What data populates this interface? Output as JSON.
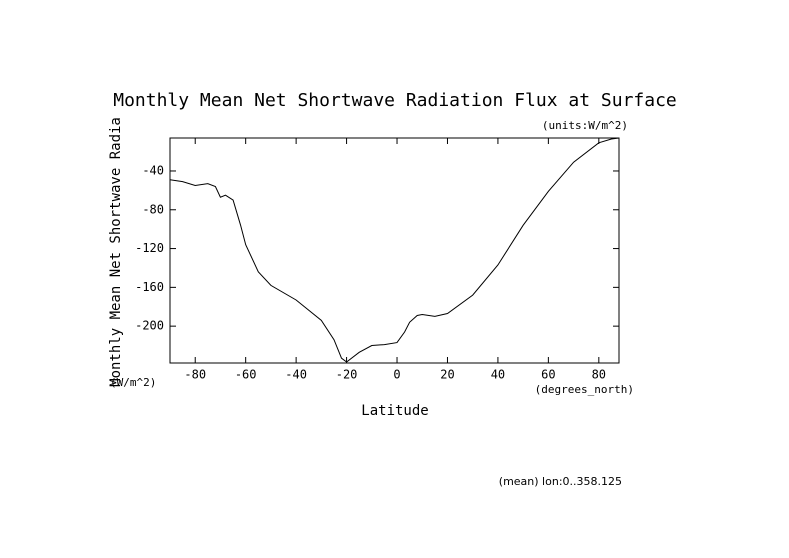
{
  "chart_data": {
    "type": "line",
    "title": "Monthly Mean Net Shortwave Radiation Flux at Surface",
    "units_note": "(units:W/m^2)",
    "y_label": "Monthly Mean Net Shortwave Radia",
    "y_unit": "(W/m^2)",
    "x_unit": "(degrees_north)",
    "x_label": "Latitude",
    "footnote": "(mean) lon:0..358.125",
    "color": "#000000",
    "x": [
      -90,
      -85,
      -80,
      -75,
      -72,
      -70,
      -68,
      -65,
      -62,
      -60,
      -55,
      -50,
      -40,
      -30,
      -25,
      -22,
      -20,
      -15,
      -10,
      -5,
      0,
      3,
      5,
      8,
      10,
      15,
      20,
      30,
      40,
      50,
      60,
      70,
      80,
      85,
      88
    ],
    "values": [
      -49,
      -51,
      -55,
      -53,
      -56,
      -67,
      -65,
      -70,
      -96,
      -116,
      -144,
      -158,
      -173,
      -194,
      -214,
      -233,
      -237,
      -227,
      -220,
      -219,
      -217,
      -206,
      -196,
      -189,
      -188,
      -190,
      -187,
      -168,
      -137,
      -96,
      -61,
      -31,
      -11,
      -7,
      -6
    ],
    "xlim": [
      -90,
      88
    ],
    "ylim": [
      -238,
      -6
    ],
    "xticks": [
      -80,
      -60,
      -40,
      -20,
      0,
      20,
      40,
      60,
      80
    ],
    "yticks": [
      -40,
      -80,
      -120,
      -160,
      -200
    ]
  }
}
